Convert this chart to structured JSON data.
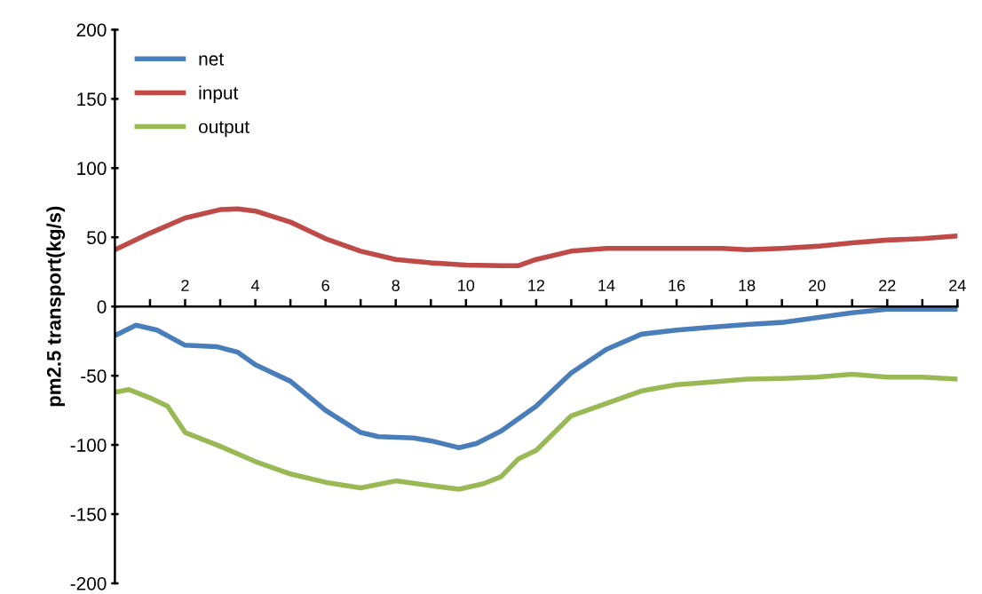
{
  "chart_data": {
    "type": "line",
    "ylabel": "pm2.5 transport(kg/s)",
    "xlim": [
      0,
      24
    ],
    "ylim": [
      -200,
      200
    ],
    "xticks": [
      {
        "value": 1,
        "label": null
      },
      2,
      {
        "value": 3,
        "label": null
      },
      4,
      {
        "value": 5,
        "label": null
      },
      6,
      {
        "value": 7,
        "label": null
      },
      8,
      {
        "value": 9,
        "label": null
      },
      10,
      {
        "value": 11,
        "label": null
      },
      12,
      {
        "value": 13,
        "label": null
      },
      14,
      {
        "value": 15,
        "label": null
      },
      16,
      {
        "value": 17,
        "label": null
      },
      18,
      {
        "value": 19,
        "label": null
      },
      20,
      {
        "value": 21,
        "label": null
      },
      22,
      {
        "value": 23,
        "label": null
      },
      24
    ],
    "yticks": [
      -200,
      -150,
      -100,
      -50,
      0,
      50,
      100,
      150,
      200
    ],
    "grid": false,
    "legend": "top left",
    "marker": "none",
    "line_style": "solid",
    "series": [
      {
        "name": "net",
        "color": "#4a7ebb",
        "x": [
          0,
          0.6,
          1.2,
          2,
          2.9,
          3.5,
          4,
          5,
          6,
          7,
          7.5,
          8.5,
          9,
          9.8,
          10.3,
          11,
          12,
          13,
          14,
          15,
          16,
          17,
          18,
          19,
          20,
          21,
          22,
          24
        ],
        "values": [
          -21,
          -13.5,
          -17,
          -28,
          -29,
          -33,
          -42,
          -54,
          -75,
          -91,
          -94,
          -95,
          -97,
          -102,
          -99,
          -90,
          -72,
          -48,
          -31,
          -20,
          -17,
          -15,
          -13,
          -11.5,
          -8,
          -4.5,
          -2,
          -2
        ]
      },
      {
        "name": "input",
        "color": "#be4b48",
        "x": [
          0,
          1,
          2,
          3,
          3.5,
          4,
          5,
          6,
          7,
          8,
          9,
          10,
          11,
          11.5,
          12,
          13,
          14,
          16,
          17.3,
          18,
          19,
          20,
          21,
          22,
          23,
          24
        ],
        "values": [
          41,
          53,
          64,
          70,
          70.5,
          69,
          61,
          49,
          40,
          34,
          31.5,
          30,
          29.5,
          29.5,
          34,
          40,
          42,
          42,
          42,
          41,
          42,
          43.5,
          46,
          48,
          49,
          51
        ]
      },
      {
        "name": "output",
        "color": "#98b954",
        "x": [
          0,
          0.4,
          1,
          1.5,
          2,
          2.5,
          3,
          4,
          5,
          6,
          7,
          8,
          9,
          9.8,
          10.5,
          11,
          11.5,
          12,
          13,
          14,
          15,
          16,
          17,
          18,
          19,
          20,
          21,
          22,
          23,
          24
        ],
        "values": [
          -62,
          -60,
          -66,
          -72,
          -91,
          -96,
          -101,
          -112,
          -121,
          -127,
          -131,
          -126,
          -129.5,
          -132,
          -128,
          -123,
          -110,
          -104,
          -79,
          -70,
          -61,
          -56.5,
          -54.5,
          -52.5,
          -52,
          -51,
          -49,
          -51,
          -51,
          -52.5
        ]
      }
    ]
  }
}
